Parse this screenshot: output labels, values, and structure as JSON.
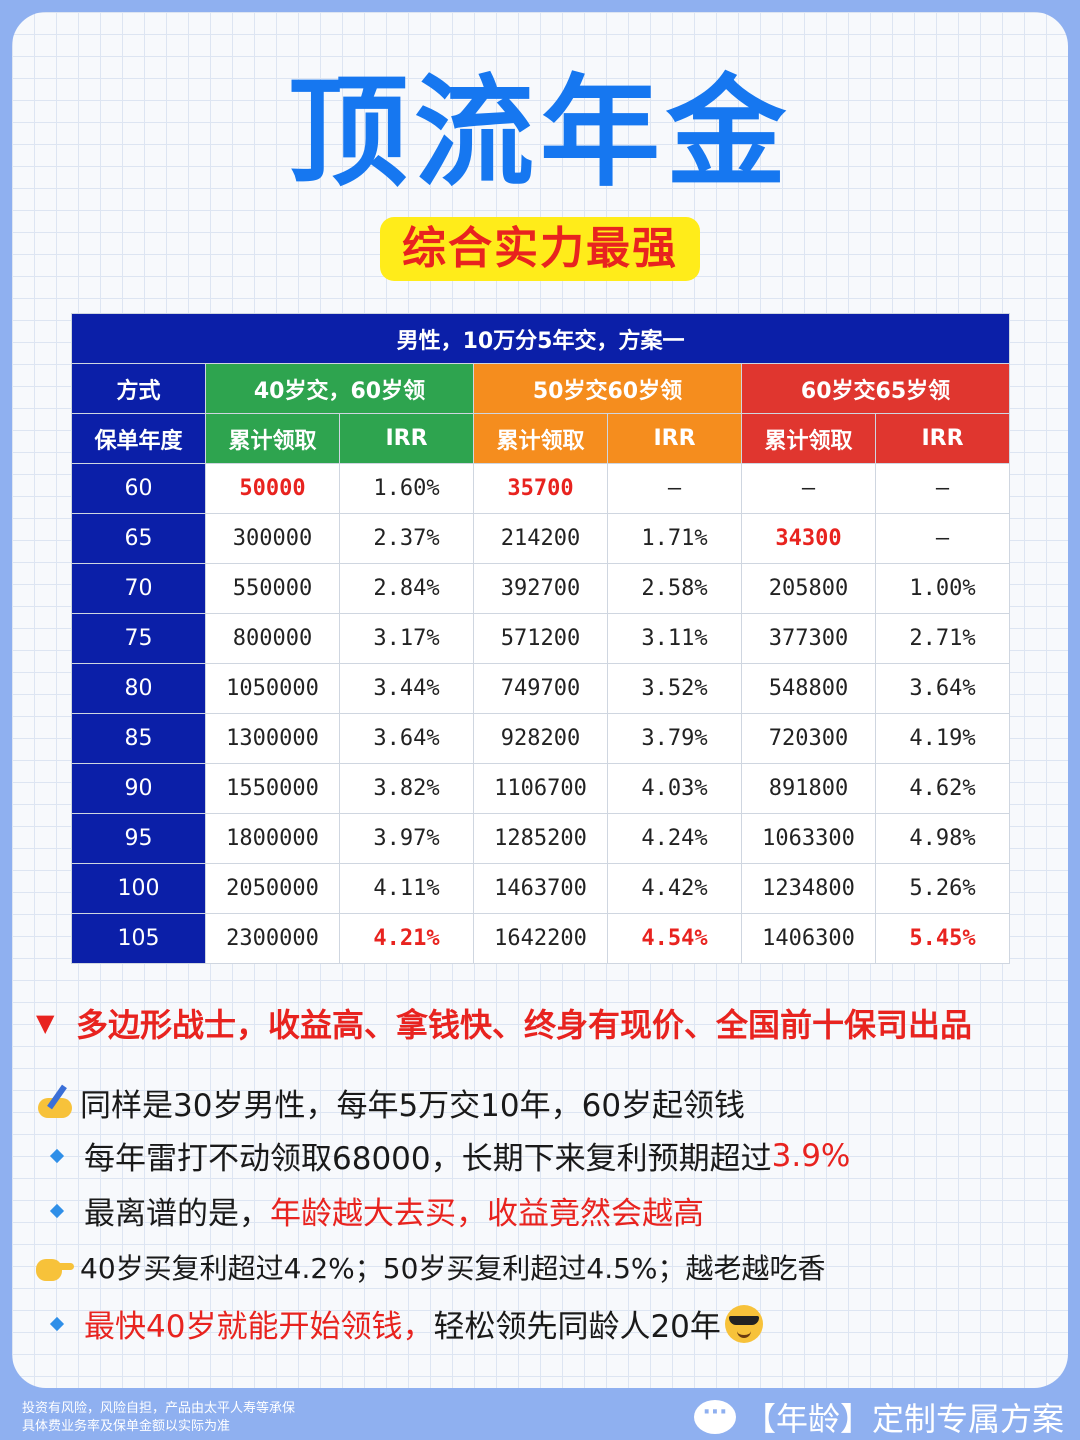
{
  "title": "顶流年金",
  "subtitle": "综合实力最强",
  "table": {
    "caption": "男性，10万分5年交，方案一",
    "col_method": "方式",
    "col_year": "保单年度",
    "plans": [
      "40岁交，60岁领",
      "50岁交60岁领",
      "60岁交65岁领"
    ],
    "sub_cum": "累计领取",
    "sub_irr": "IRR",
    "rows": [
      {
        "year": "60",
        "c1": "50000",
        "i1": "1.60%",
        "c2": "35700",
        "i2": "–",
        "c3": "–",
        "i3": "–"
      },
      {
        "year": "65",
        "c1": "300000",
        "i1": "2.37%",
        "c2": "214200",
        "i2": "1.71%",
        "c3": "34300",
        "i3": "–"
      },
      {
        "year": "70",
        "c1": "550000",
        "i1": "2.84%",
        "c2": "392700",
        "i2": "2.58%",
        "c3": "205800",
        "i3": "1.00%"
      },
      {
        "year": "75",
        "c1": "800000",
        "i1": "3.17%",
        "c2": "571200",
        "i2": "3.11%",
        "c3": "377300",
        "i3": "2.71%"
      },
      {
        "year": "80",
        "c1": "1050000",
        "i1": "3.44%",
        "c2": "749700",
        "i2": "3.52%",
        "c3": "548800",
        "i3": "3.64%"
      },
      {
        "year": "85",
        "c1": "1300000",
        "i1": "3.64%",
        "c2": "928200",
        "i2": "3.79%",
        "c3": "720300",
        "i3": "4.19%"
      },
      {
        "year": "90",
        "c1": "1550000",
        "i1": "3.82%",
        "c2": "1106700",
        "i2": "4.03%",
        "c3": "891800",
        "i3": "4.62%"
      },
      {
        "year": "95",
        "c1": "1800000",
        "i1": "3.97%",
        "c2": "1285200",
        "i2": "4.24%",
        "c3": "1063300",
        "i3": "4.98%"
      },
      {
        "year": "100",
        "c1": "2050000",
        "i1": "4.11%",
        "c2": "1463700",
        "i2": "4.42%",
        "c3": "1234800",
        "i3": "5.26%"
      },
      {
        "year": "105",
        "c1": "2300000",
        "i1": "4.21%",
        "c2": "1642200",
        "i2": "4.54%",
        "c3": "1406300",
        "i3": "5.45%"
      }
    ]
  },
  "bullets": {
    "headline": "多边形战士，收益高、拿钱快、终身有现价、全国前十保司出品",
    "line1": "同样是30岁男性，每年5万交10年，60岁起领钱",
    "line2_a": "每年雷打不动领取68000，长期下来复利预期超过",
    "line2_b": "3.9%",
    "line3_a": "最离谱的是，",
    "line3_b": "年龄越大去买，收益竟然会越高",
    "line4": "40岁买复利超过4.2%；50岁买复利超过4.5%；越老越吃香",
    "line5_a": "最快40岁就能开始领钱，",
    "line5_b": "轻松领先同龄人20年"
  },
  "footer": {
    "disclaimer_1": "投资有风险，风险自担，产品由太平人寿等承保",
    "disclaimer_2": "具体费业务率及保单金额以实际为准",
    "cta": "【年龄】定制专属方案"
  },
  "colors": {
    "title_blue": "#1677f0",
    "highlight_yellow": "#ffec1a",
    "accent_red": "#e8231f",
    "table_navy": "#0b1fa8",
    "plan_green": "#2ea44f",
    "plan_orange": "#f58d1e",
    "plan_red": "#e0362f"
  },
  "icons": [
    "writing-hand-icon",
    "pointing-hand-icon",
    "cool-face-icon",
    "chat-bubble-icon",
    "triangle-icon",
    "diamond-bullet-icon"
  ]
}
